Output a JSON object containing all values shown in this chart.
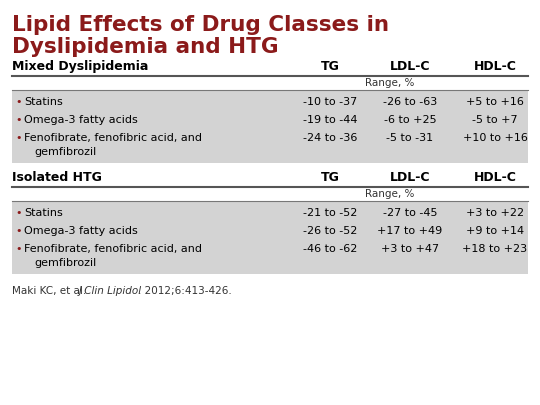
{
  "title_line1": "Lipid Effects of Drug Classes in",
  "title_line2": "Dyslipidemia and HTG",
  "title_color": "#8B1A1A",
  "bg_color": "#FFFFFF",
  "gray_bg": "#D3D3D3",
  "bullet_color": "#8B1A1A",
  "section1_header": "Mixed Dyslipidemia",
  "section2_header": "Isolated HTG",
  "col_headers": [
    "TG",
    "LDL-C",
    "HDL-C"
  ],
  "range_label": "Range, %",
  "bullet_labels": [
    "Statins",
    "Omega-3 fatty acids",
    "Fenofibrate, fenofibric acid, and",
    "gemfibrozil"
  ],
  "section1_data": {
    "TG": [
      "-10 to -37",
      "-19 to -44",
      "-24 to -36"
    ],
    "LDL-C": [
      "-26 to -63",
      "-6 to +25",
      "-5 to -31"
    ],
    "HDL-C": [
      "+5 to +16",
      "-5 to +7",
      "+10 to +16"
    ]
  },
  "section2_data": {
    "TG": [
      "-21 to -52",
      "-26 to -52",
      "-46 to -62"
    ],
    "LDL-C": [
      "-27 to -45",
      "+17 to +49",
      "+3 to +47"
    ],
    "HDL-C": [
      "+3 to +22",
      "+9 to +14",
      "+18 to +23"
    ]
  },
  "footnote_plain1": "Maki KC, et al. ",
  "footnote_italic": "J Clin Lipidol",
  "footnote_plain2": ". 2012;6:413-426."
}
